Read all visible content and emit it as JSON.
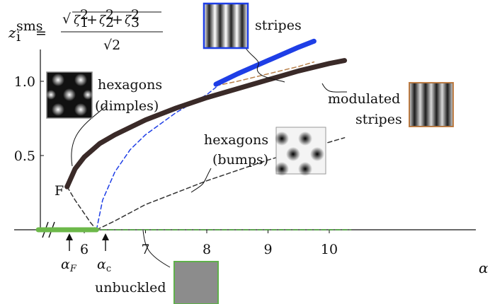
{
  "chart_data": {
    "type": "line",
    "xlabel": "α",
    "ylabel": "z_i^sms = √(ζ1² + ζ2² + ζ3²) / √2",
    "xlim": [
      5.25,
      10.35
    ],
    "ylim": [
      0,
      1.3
    ],
    "x_ticks": [
      "6",
      "7",
      "8",
      "9",
      "10"
    ],
    "y_ticks": [
      "0.5",
      "1.0"
    ],
    "axis_break": "x",
    "grid": false,
    "legend": "none",
    "series": [
      {
        "name": "hexagons (dimples)",
        "style": "thick solid",
        "color": "#3a2a28",
        "x": [
          5.72,
          5.85,
          6.0,
          6.25,
          6.5,
          7.0,
          7.5,
          8.0,
          8.5,
          9.0,
          9.5,
          10.0,
          10.25
        ],
        "y": [
          0.29,
          0.41,
          0.49,
          0.58,
          0.64,
          0.74,
          0.82,
          0.89,
          0.95,
          1.01,
          1.07,
          1.12,
          1.14
        ]
      },
      {
        "name": "stripes",
        "style": "thick solid",
        "color": "#1e3ee6",
        "x": [
          8.15,
          8.5,
          9.0,
          9.5,
          9.75
        ],
        "y": [
          0.98,
          1.05,
          1.14,
          1.23,
          1.27
        ]
      },
      {
        "name": "modulated stripes",
        "style": "dashed",
        "color": "#b8804a",
        "x": [
          8.15,
          8.5,
          9.0,
          9.5,
          9.75
        ],
        "y": [
          0.97,
          1.0,
          1.05,
          1.1,
          1.13
        ]
      },
      {
        "name": "stripes (unstable)",
        "style": "dashed",
        "color": "#1e3ee6",
        "x": [
          6.2,
          6.3,
          6.5,
          6.75,
          7.0,
          7.5,
          8.0,
          8.15
        ],
        "y": [
          0.0,
          0.2,
          0.39,
          0.54,
          0.64,
          0.79,
          0.91,
          0.96
        ]
      },
      {
        "name": "hexagons (bumps)",
        "style": "dashed",
        "color": "#333333",
        "x": [
          6.2,
          6.5,
          7.0,
          7.5,
          8.0,
          8.5,
          9.0,
          9.5,
          10.0,
          10.25
        ],
        "y": [
          0.0,
          0.06,
          0.17,
          0.25,
          0.33,
          0.4,
          0.47,
          0.53,
          0.59,
          0.62
        ]
      },
      {
        "name": "fold branch",
        "style": "dashed",
        "color": "#333333",
        "x": [
          5.72,
          5.85,
          6.0,
          6.1,
          6.2
        ],
        "y": [
          0.29,
          0.2,
          0.11,
          0.05,
          0.0
        ]
      },
      {
        "name": "unbuckled",
        "style": "dashed green",
        "color": "#3a9a2a",
        "x": [
          5.25,
          10.35
        ],
        "y": [
          0.0,
          0.0
        ]
      },
      {
        "name": "unbuckled (stable)",
        "style": "thick solid",
        "color": "#6cb84a",
        "x": [
          5.25,
          6.2
        ],
        "y": [
          0.0,
          0.0
        ]
      }
    ],
    "annotations": [
      {
        "text": "stripes"
      },
      {
        "text": "hexagons"
      },
      {
        "text": "(dimples)"
      },
      {
        "text": "modulated"
      },
      {
        "text": "stripes"
      },
      {
        "text": "hexagons"
      },
      {
        "text": "(bumps)"
      },
      {
        "text": "unbuckled"
      },
      {
        "text": "F"
      },
      {
        "text": "α_F"
      },
      {
        "text": "α_c"
      }
    ]
  }
}
